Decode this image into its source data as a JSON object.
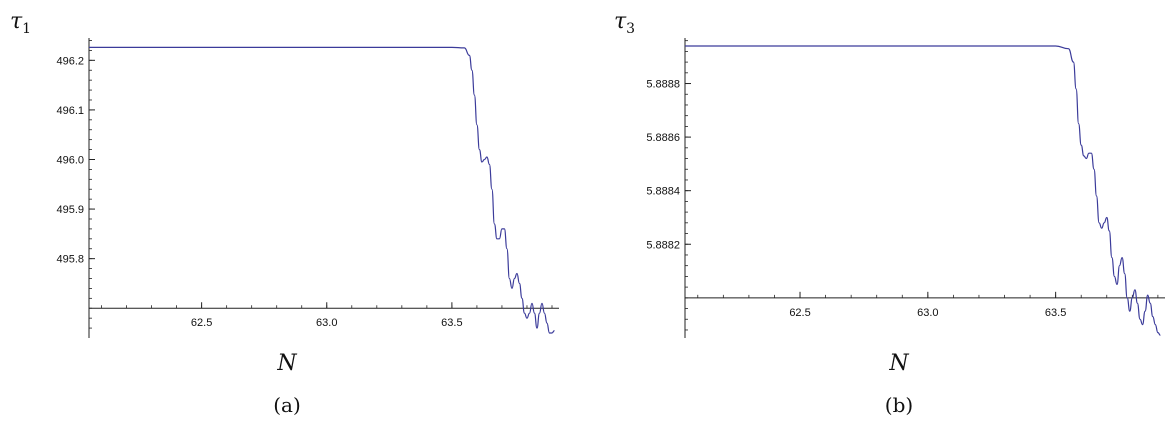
{
  "chart_data": [
    {
      "type": "line",
      "title": "",
      "ylabel": "τ",
      "ylabel_sub": "1",
      "xlabel": "N",
      "caption": "(a)",
      "xlim": [
        62.05,
        63.92
      ],
      "ylim": [
        495.64,
        496.245
      ],
      "x_axis_crosses_y": 495.7,
      "x_ticks": [
        62.5,
        63.0,
        63.5
      ],
      "x_tick_labels": [
        "62.5",
        "63.0",
        "63.5"
      ],
      "y_ticks": [
        496.2,
        496.1,
        496.0,
        495.9,
        495.8
      ],
      "y_tick_labels": [
        "496.2",
        "496.1",
        "496.0",
        "495.9",
        "495.8"
      ],
      "line_color": "#3b3b9a",
      "series": [
        {
          "x": [
            62.05,
            62.5,
            63.0,
            63.5,
            63.55,
            63.57,
            63.58,
            63.59,
            63.6,
            63.61,
            63.62,
            63.63,
            63.64,
            63.65,
            63.66,
            63.67,
            63.68,
            63.69,
            63.7,
            63.71,
            63.72,
            63.73,
            63.74,
            63.75,
            63.76,
            63.77,
            63.78,
            63.79,
            63.8,
            63.81,
            63.82,
            63.83,
            63.84,
            63.85,
            63.86,
            63.87,
            63.88,
            63.89,
            63.9,
            63.91
          ],
          "y": [
            496.226,
            496.226,
            496.226,
            496.226,
            496.225,
            496.21,
            496.18,
            496.13,
            496.07,
            496.02,
            495.995,
            496.0,
            496.005,
            495.99,
            495.94,
            495.87,
            495.84,
            495.84,
            495.86,
            495.86,
            495.82,
            495.76,
            495.74,
            495.76,
            495.77,
            495.75,
            495.72,
            495.69,
            495.68,
            495.69,
            495.71,
            495.69,
            495.66,
            495.69,
            495.71,
            495.69,
            495.67,
            495.65,
            495.65,
            495.655
          ]
        }
      ]
    },
    {
      "type": "line",
      "title": "",
      "ylabel": "τ",
      "ylabel_sub": "3",
      "xlabel": "N",
      "caption": "(b)",
      "xlim": [
        62.05,
        63.92
      ],
      "ylim": [
        5.88785,
        5.88897
      ],
      "x_axis_crosses_y": 5.888,
      "x_ticks": [
        62.5,
        63.0,
        63.5
      ],
      "x_tick_labels": [
        "62.5",
        "63.0",
        "63.5"
      ],
      "y_ticks": [
        5.8888,
        5.8886,
        5.8884,
        5.8882
      ],
      "y_tick_labels": [
        "5.8888",
        "5.8886",
        "5.8884",
        "5.8882"
      ],
      "line_color": "#3b3b9a",
      "series": [
        {
          "x": [
            62.05,
            62.5,
            63.0,
            63.5,
            63.55,
            63.57,
            63.58,
            63.59,
            63.6,
            63.61,
            63.62,
            63.63,
            63.64,
            63.65,
            63.66,
            63.67,
            63.68,
            63.69,
            63.7,
            63.71,
            63.72,
            63.73,
            63.74,
            63.75,
            63.76,
            63.77,
            63.78,
            63.79,
            63.8,
            63.81,
            63.82,
            63.83,
            63.84,
            63.85,
            63.86,
            63.87,
            63.88,
            63.89,
            63.9,
            63.91
          ],
          "y": [
            5.88894,
            5.88894,
            5.88894,
            5.88894,
            5.88893,
            5.88888,
            5.88878,
            5.88865,
            5.88857,
            5.88853,
            5.88852,
            5.88854,
            5.88854,
            5.88848,
            5.88838,
            5.88828,
            5.88826,
            5.88828,
            5.8883,
            5.88825,
            5.88815,
            5.88808,
            5.88805,
            5.88812,
            5.88815,
            5.88809,
            5.888,
            5.88795,
            5.888,
            5.88803,
            5.88798,
            5.88792,
            5.8879,
            5.88795,
            5.88801,
            5.88798,
            5.88793,
            5.8879,
            5.88787,
            5.88786
          ]
        }
      ]
    }
  ]
}
